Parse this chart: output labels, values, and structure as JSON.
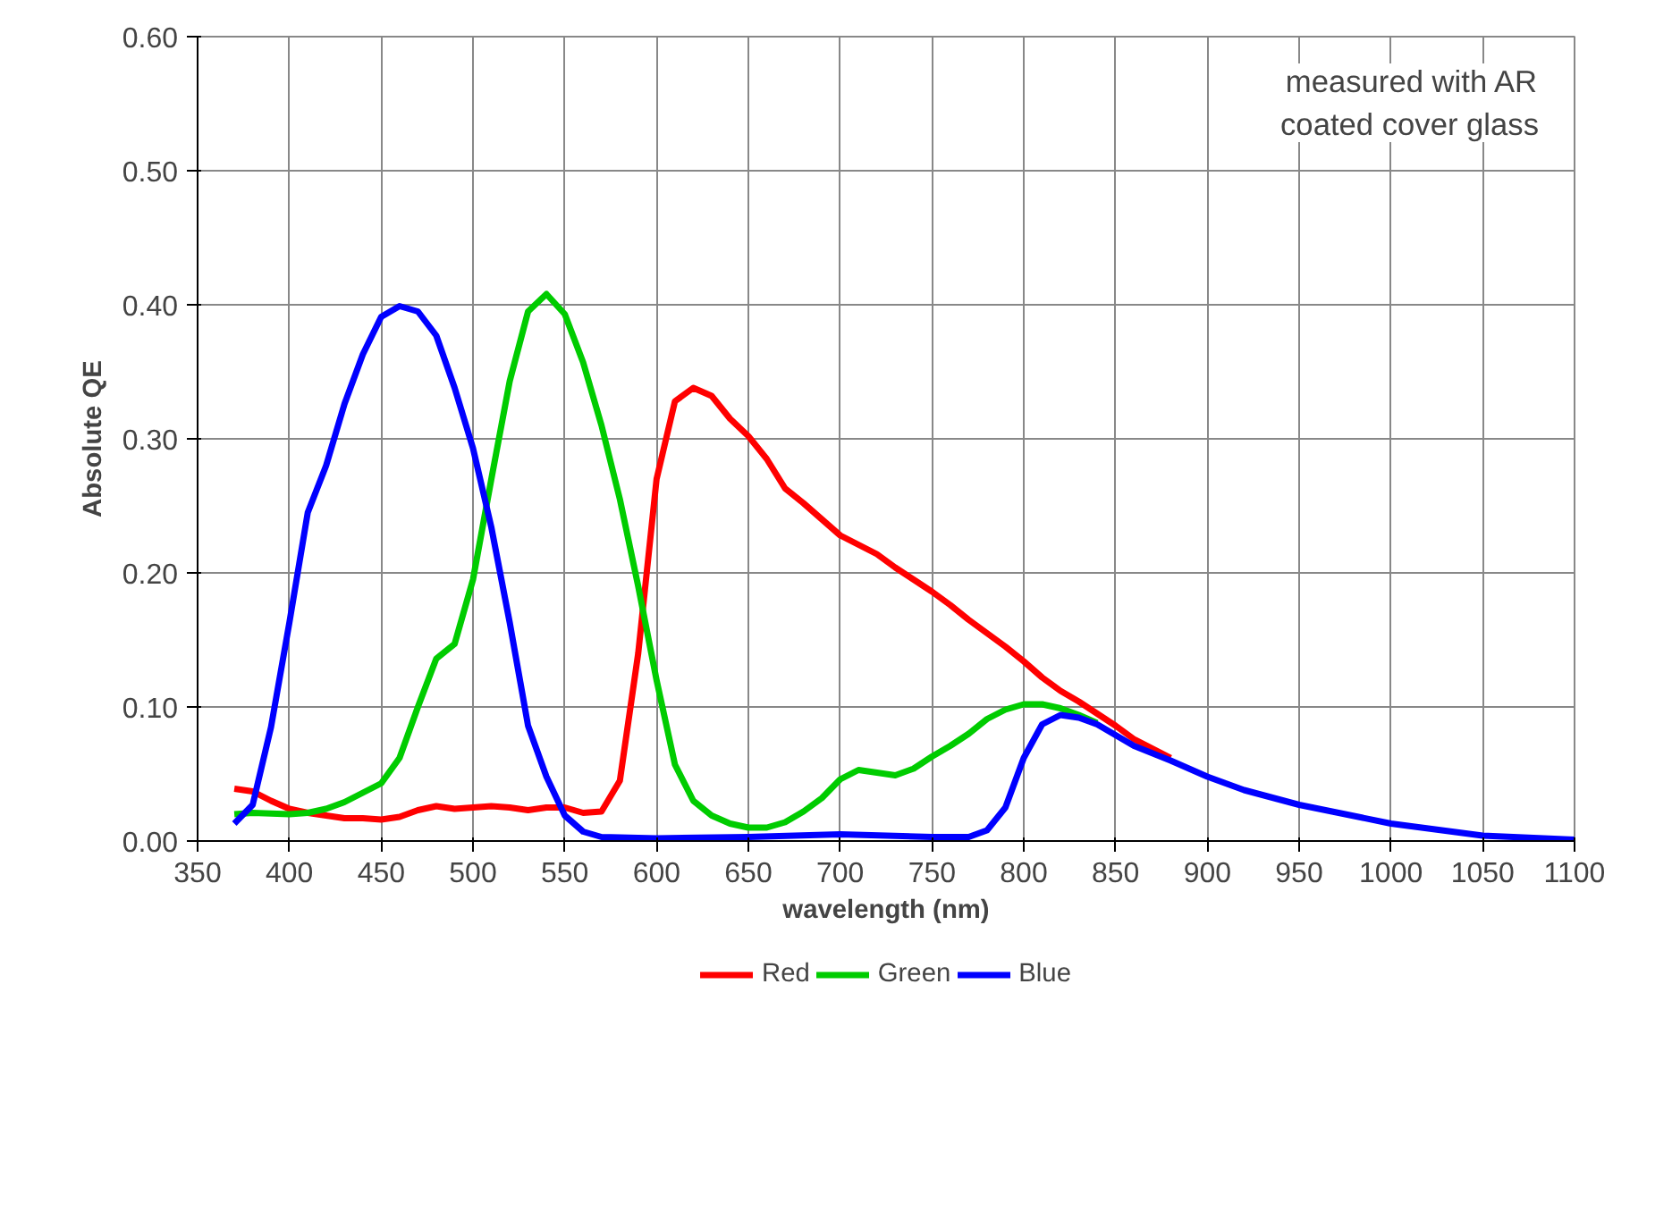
{
  "chart_data": {
    "type": "line",
    "xlabel": "wavelength (nm)",
    "ylabel": "Absolute QE",
    "annotations": [
      "measured with AR\ncoated cover glass"
    ],
    "xlim": [
      350,
      1100
    ],
    "xticks": [
      350,
      400,
      450,
      500,
      550,
      600,
      650,
      700,
      750,
      800,
      850,
      900,
      950,
      1000,
      1050,
      1100
    ],
    "ylim": [
      0,
      0.6
    ],
    "yticks": [
      {
        "value": 0,
        "label": "0.00"
      },
      {
        "value": 0.1,
        "label": "0.10"
      },
      {
        "value": 0.2,
        "label": "0.20"
      },
      {
        "value": 0.3,
        "label": "0.30"
      },
      {
        "value": 0.4,
        "label": "0.40"
      },
      {
        "value": 0.5,
        "label": "0.50"
      },
      {
        "value": 0.6,
        "label": "0.60"
      }
    ],
    "grid": true,
    "legend": "bottom",
    "marker": "none",
    "line_style": "solid",
    "series": [
      {
        "name": "Red",
        "color": "#ff0000",
        "x": [
          370,
          380,
          390,
          400,
          410,
          420,
          430,
          440,
          450,
          460,
          470,
          480,
          490,
          500,
          510,
          520,
          530,
          540,
          550,
          560,
          570,
          580,
          590,
          600,
          610,
          620,
          630,
          640,
          650,
          660,
          670,
          680,
          690,
          700,
          710,
          720,
          730,
          740,
          750,
          760,
          770,
          780,
          790,
          800,
          810,
          820,
          830,
          840,
          850,
          860,
          880
        ],
        "values": [
          0.039,
          0.037,
          0.03,
          0.024,
          0.021,
          0.019,
          0.017,
          0.017,
          0.016,
          0.018,
          0.023,
          0.026,
          0.024,
          0.025,
          0.026,
          0.025,
          0.023,
          0.025,
          0.025,
          0.021,
          0.022,
          0.045,
          0.14,
          0.27,
          0.328,
          0.338,
          0.332,
          0.315,
          0.302,
          0.285,
          0.263,
          0.252,
          0.24,
          0.228,
          0.221,
          0.214,
          0.204,
          0.195,
          0.186,
          0.176,
          0.165,
          0.155,
          0.145,
          0.134,
          0.122,
          0.112,
          0.104,
          0.095,
          0.086,
          0.076,
          0.062
        ]
      },
      {
        "name": "Green",
        "color": "#00cc00",
        "x": [
          370,
          380,
          400,
          410,
          420,
          430,
          440,
          450,
          460,
          470,
          480,
          490,
          500,
          510,
          520,
          530,
          540,
          550,
          560,
          570,
          580,
          590,
          600,
          610,
          620,
          630,
          640,
          650,
          660,
          670,
          680,
          690,
          700,
          710,
          720,
          730,
          740,
          750,
          760,
          770,
          780,
          790,
          800,
          810,
          820,
          830,
          840
        ],
        "values": [
          0.02,
          0.021,
          0.02,
          0.021,
          0.024,
          0.029,
          0.036,
          0.043,
          0.062,
          0.1,
          0.136,
          0.147,
          0.195,
          0.27,
          0.343,
          0.395,
          0.408,
          0.393,
          0.357,
          0.31,
          0.255,
          0.19,
          0.12,
          0.057,
          0.03,
          0.019,
          0.013,
          0.01,
          0.01,
          0.014,
          0.022,
          0.032,
          0.046,
          0.053,
          0.051,
          0.049,
          0.054,
          0.063,
          0.071,
          0.08,
          0.091,
          0.098,
          0.102,
          0.102,
          0.099,
          0.094,
          0.088
        ]
      },
      {
        "name": "Blue",
        "color": "#0000ff",
        "x": [
          370,
          380,
          390,
          400,
          410,
          420,
          430,
          440,
          450,
          460,
          470,
          480,
          490,
          500,
          510,
          520,
          530,
          540,
          550,
          560,
          570,
          600,
          650,
          700,
          750,
          770,
          780,
          790,
          800,
          810,
          820,
          830,
          840,
          850,
          860,
          880,
          900,
          920,
          950,
          1000,
          1050,
          1100
        ],
        "values": [
          0.013,
          0.027,
          0.085,
          0.163,
          0.245,
          0.28,
          0.326,
          0.363,
          0.391,
          0.399,
          0.395,
          0.377,
          0.338,
          0.293,
          0.234,
          0.163,
          0.086,
          0.048,
          0.019,
          0.007,
          0.003,
          0.002,
          0.003,
          0.005,
          0.003,
          0.003,
          0.008,
          0.025,
          0.062,
          0.087,
          0.094,
          0.092,
          0.087,
          0.079,
          0.071,
          0.06,
          0.048,
          0.038,
          0.027,
          0.013,
          0.004,
          0.001
        ]
      }
    ]
  }
}
